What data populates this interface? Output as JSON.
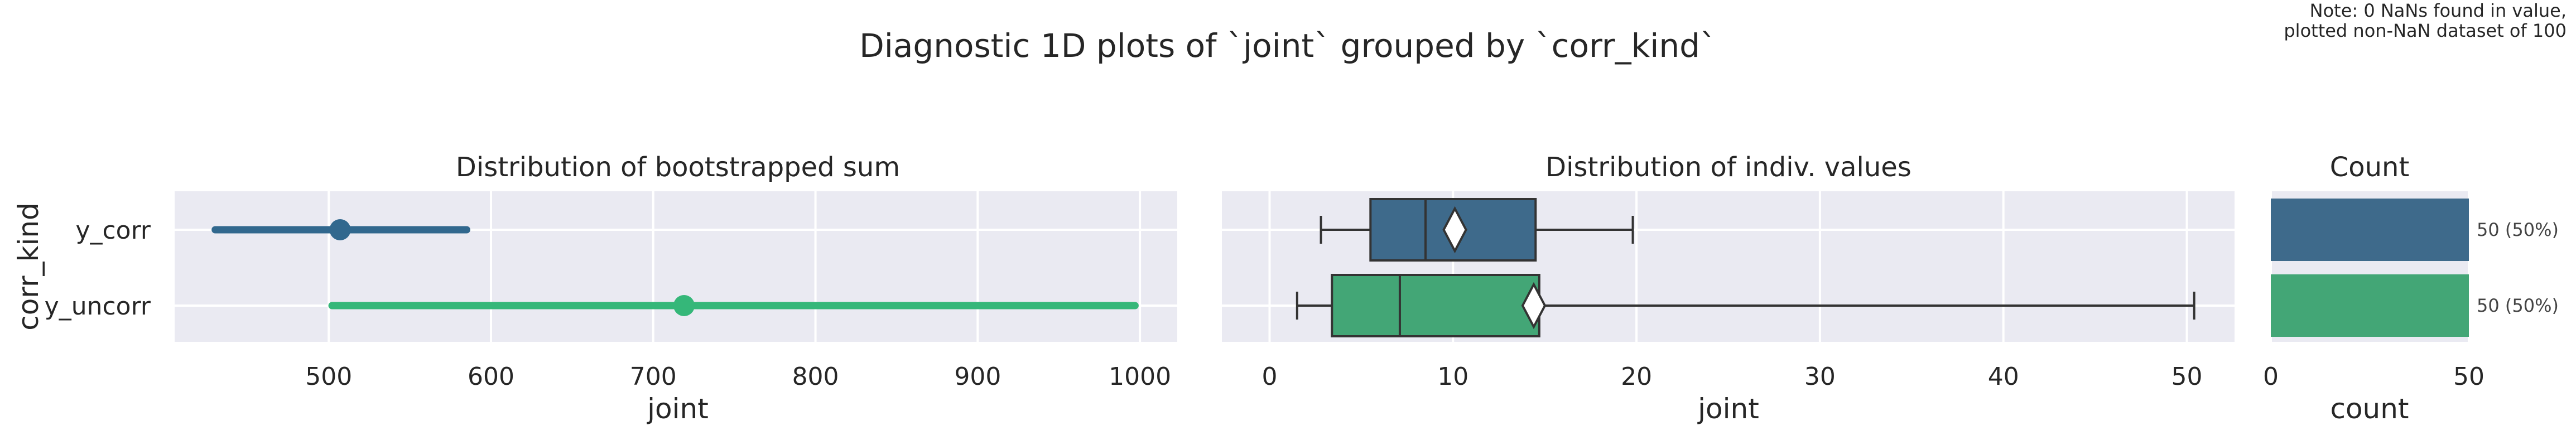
{
  "suptitle": "Diagnostic 1D plots of `joint` grouped by `corr_kind`",
  "note": [
    "Note: 0 NaNs found in value,",
    "plotted non-NaN dataset of 100"
  ],
  "chart_data": [
    {
      "type": "pointrange",
      "title": "Distribution of bootstrapped sum",
      "xlabel": "joint",
      "ylabel": "corr_kind",
      "xlim": [
        405,
        1023
      ],
      "xticks": [
        500,
        600,
        700,
        800,
        900,
        1000
      ],
      "categories": [
        "y_corr",
        "y_uncorr"
      ],
      "points": [
        {
          "category": "y_corr",
          "center": 507,
          "low": 430,
          "high": 585,
          "color": "#31688e"
        },
        {
          "category": "y_uncorr",
          "center": 719,
          "low": 502,
          "high": 997,
          "color": "#35b779"
        }
      ],
      "grid": true
    },
    {
      "type": "box",
      "title": "Distribution of indiv. values",
      "xlabel": "joint",
      "xlim": [
        -2.6,
        52.6
      ],
      "xticks": [
        0,
        10,
        20,
        30,
        40,
        50
      ],
      "categories": [
        "y_corr",
        "y_uncorr"
      ],
      "boxes": [
        {
          "category": "y_corr",
          "whisker_low": 2.8,
          "q1": 5.5,
          "median": 8.5,
          "q3": 14.5,
          "whisker_high": 19.8,
          "mean": 10.1,
          "color": "#3e6a8b"
        },
        {
          "category": "y_uncorr",
          "whisker_low": 1.5,
          "q1": 3.4,
          "median": 7.1,
          "q3": 14.7,
          "whisker_high": 50.4,
          "mean": 14.4,
          "color": "#43a676"
        }
      ],
      "grid": true
    },
    {
      "type": "bar",
      "orientation": "horizontal",
      "title": "Count",
      "xlabel": "count",
      "xlim": [
        0,
        50
      ],
      "xticks": [
        0,
        50
      ],
      "categories": [
        "y_corr",
        "y_uncorr"
      ],
      "values": [
        50,
        50
      ],
      "labels": [
        "50 (50%)",
        "50 (50%)"
      ],
      "colors": [
        "#3e6a8b",
        "#43a676"
      ],
      "grid": true
    }
  ]
}
